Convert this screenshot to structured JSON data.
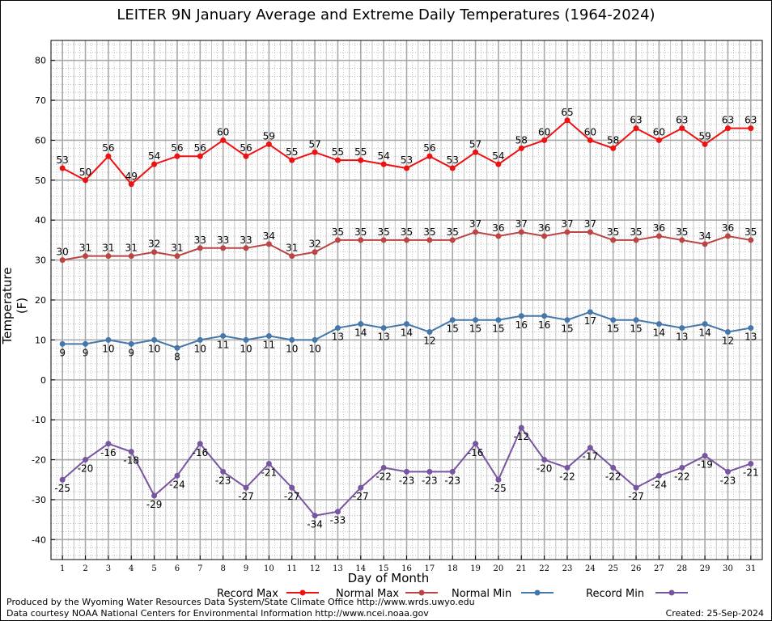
{
  "chart_data": {
    "type": "line",
    "title": "LEITER 9N January Average and Extreme Daily Temperatures (1964-2024)",
    "xlabel": "Day of Month",
    "ylabel": "Temperature (F)",
    "ylim": [
      -45,
      85
    ],
    "xlim": [
      0.5,
      31.5
    ],
    "yticks": [
      -40,
      -30,
      -20,
      -10,
      0,
      10,
      20,
      30,
      40,
      50,
      60,
      70,
      80
    ],
    "x": [
      1,
      2,
      3,
      4,
      5,
      6,
      7,
      8,
      9,
      10,
      11,
      12,
      13,
      14,
      15,
      16,
      17,
      18,
      19,
      20,
      21,
      22,
      23,
      24,
      25,
      26,
      27,
      28,
      29,
      30,
      31
    ],
    "grid": true,
    "legend_position": "bottom",
    "series": [
      {
        "name": "Record Max",
        "color": "#ee1111",
        "values": [
          53,
          50,
          56,
          49,
          54,
          56,
          56,
          60,
          56,
          59,
          55,
          57,
          55,
          55,
          54,
          53,
          56,
          53,
          57,
          54,
          58,
          60,
          65,
          60,
          58,
          63,
          60,
          63,
          59,
          63,
          63
        ],
        "label_pos": "above"
      },
      {
        "name": "Normal Max",
        "color": "#bb4444",
        "values": [
          30,
          31,
          31,
          31,
          32,
          31,
          33,
          33,
          33,
          34,
          31,
          32,
          35,
          35,
          35,
          35,
          35,
          35,
          37,
          36,
          37,
          36,
          37,
          37,
          35,
          35,
          36,
          35,
          34,
          36,
          35
        ],
        "label_pos": "above"
      },
      {
        "name": "Normal Min",
        "color": "#4477aa",
        "values": [
          9,
          9,
          10,
          9,
          10,
          8,
          10,
          11,
          10,
          11,
          10,
          10,
          13,
          14,
          13,
          14,
          12,
          15,
          15,
          15,
          16,
          16,
          15,
          17,
          15,
          15,
          14,
          13,
          14,
          12,
          13
        ],
        "label_pos": "below"
      },
      {
        "name": "Record Min",
        "color": "#7755a0",
        "values": [
          -25,
          -20,
          -16,
          -18,
          -29,
          -24,
          -16,
          -23,
          -27,
          -21,
          -27,
          -34,
          -33,
          -27,
          -22,
          -23,
          -23,
          -23,
          -16,
          -25,
          -12,
          -20,
          -22,
          -17,
          -22,
          -27,
          -24,
          -22,
          -19,
          -23,
          -21
        ],
        "label_pos": "below"
      }
    ]
  },
  "footer": {
    "line1": "Produced by the Wyoming Water Resources Data System/State Climate Office http://www.wrds.uwyo.edu",
    "line2": "Data courtesy NOAA National Centers for Environmental Information http://www.ncei.noaa.gov",
    "created": "Created:  25-Sep-2024"
  }
}
